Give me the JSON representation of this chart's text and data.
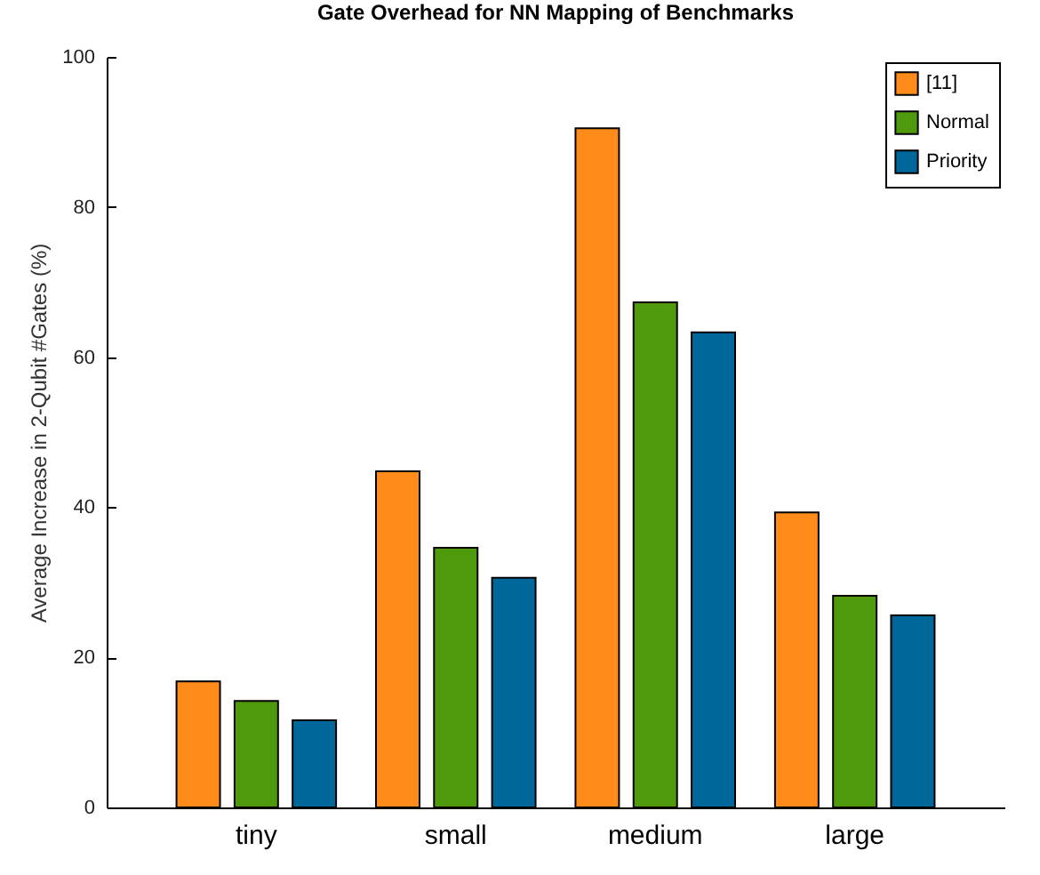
{
  "chart_data": {
    "type": "bar",
    "title": "Gate Overhead for NN Mapping of Benchmarks",
    "ylabel": "Average Increase in 2-Qubit #Gates (%)",
    "categories": [
      "tiny",
      "small",
      "medium",
      "large"
    ],
    "series": [
      {
        "name": "[11]",
        "color": "#ff8c1a",
        "values": [
          16.8,
          44.8,
          90.5,
          39.3
        ]
      },
      {
        "name": "Normal",
        "color": "#4f9a0c",
        "values": [
          14.2,
          34.6,
          67.3,
          28.2
        ]
      },
      {
        "name": "Priority",
        "color": "#00679a",
        "values": [
          11.6,
          30.6,
          63.3,
          25.6
        ]
      }
    ],
    "ylim": [
      0,
      100
    ],
    "yticks": [
      0,
      20,
      40,
      60,
      80,
      100
    ],
    "grid": false,
    "legend": "top right"
  }
}
